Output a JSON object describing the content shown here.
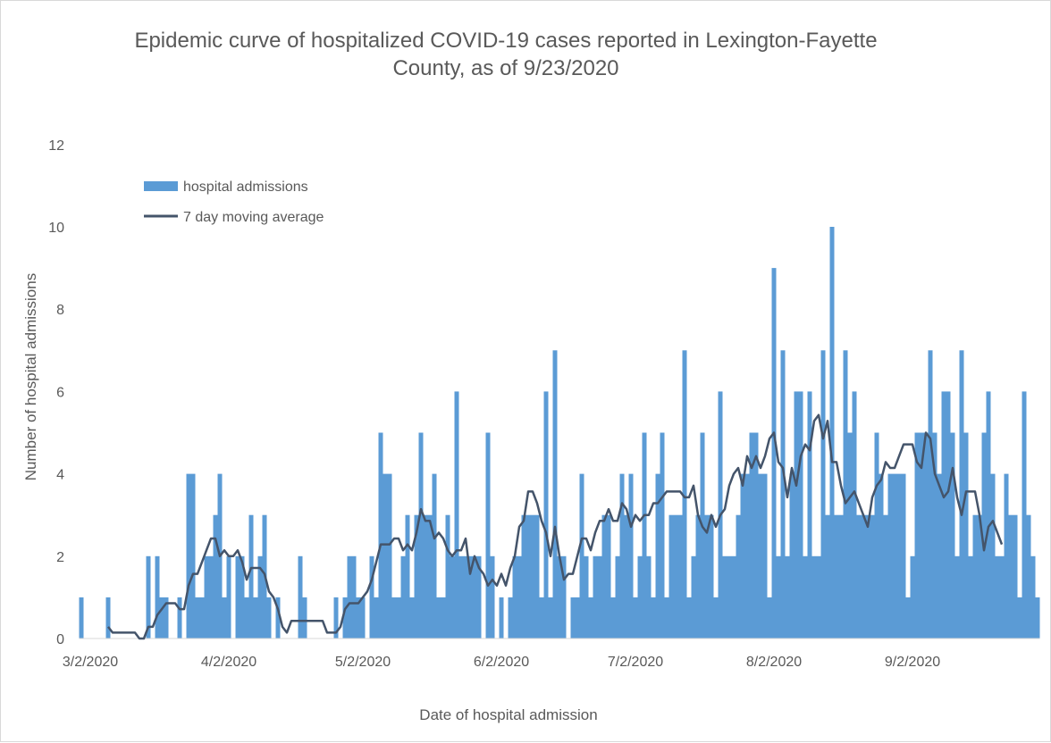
{
  "chart_data": {
    "type": "bar",
    "title_lines": [
      "Epidemic curve of hospitalized COVID-19 cases reported in Lexington-Fayette",
      "County, as of 9/23/2020"
    ],
    "xlabel": "Date of hospital admission",
    "ylabel": "Number of hospital admissions",
    "ylim": [
      0,
      12
    ],
    "y_ticks": [
      "0",
      "2",
      "4",
      "6",
      "8",
      "10",
      "12"
    ],
    "x_ticks": [
      "3/2/2020",
      "4/2/2020",
      "5/2/2020",
      "6/2/2020",
      "7/2/2020",
      "8/2/2020",
      "9/2/2020"
    ],
    "x_tick_day_index": [
      2,
      33,
      63,
      94,
      124,
      155,
      186
    ],
    "start_date": "2/29/2020",
    "legend": {
      "placement": "top-left",
      "items": [
        "hospital admissions",
        "7 day moving average"
      ]
    },
    "grid": false,
    "colors": {
      "bars": "#5b9bd5",
      "line": "#44546a"
    },
    "series": [
      {
        "name": "hospital admissions",
        "values": [
          1,
          0,
          0,
          0,
          0,
          0,
          1,
          0,
          0,
          0,
          0,
          0,
          0,
          0,
          0,
          2,
          0,
          2,
          1,
          1,
          0,
          0,
          1,
          0,
          4,
          4,
          1,
          1,
          2,
          2,
          3,
          4,
          1,
          2,
          0,
          2,
          2,
          1,
          3,
          1,
          2,
          3,
          1,
          0,
          1,
          0,
          0,
          0,
          0,
          2,
          1,
          0,
          0,
          0,
          0,
          0,
          0,
          1,
          0,
          1,
          2,
          2,
          1,
          1,
          0,
          2,
          1,
          5,
          4,
          4,
          1,
          1,
          2,
          3,
          1,
          3,
          5,
          3,
          3,
          4,
          1,
          1,
          3,
          2,
          6,
          2,
          2,
          2,
          2,
          2,
          0,
          5,
          2,
          0,
          1,
          0,
          1,
          2,
          2,
          3,
          3,
          3,
          3,
          1,
          6,
          1,
          7,
          2,
          2,
          0,
          1,
          1,
          4,
          2,
          1,
          2,
          2,
          3,
          3,
          1,
          2,
          4,
          3,
          4,
          1,
          2,
          5,
          2,
          1,
          4,
          5,
          1,
          3,
          3,
          3,
          7,
          1,
          2,
          3,
          5,
          3,
          3,
          1,
          6,
          2,
          2,
          2,
          3,
          4,
          4,
          5,
          5,
          4,
          4,
          1,
          9,
          2,
          7,
          2,
          4,
          6,
          6,
          2,
          6,
          2,
          2,
          7,
          3,
          10,
          3,
          3,
          7,
          5,
          6,
          3,
          3,
          3,
          3,
          5,
          4,
          3,
          4,
          4,
          4,
          4,
          1,
          2,
          5,
          5,
          5,
          7,
          5,
          4,
          6,
          6,
          5,
          2,
          7,
          5,
          2,
          3,
          3,
          5,
          6,
          4,
          2,
          2,
          4,
          3,
          3,
          1,
          6,
          3,
          2,
          1
        ]
      },
      {
        "name": "7 day moving average",
        "values": [
          0,
          0,
          0,
          0,
          0,
          0,
          0.286,
          0.143,
          0.143,
          0.143,
          0.143,
          0.143,
          0.143,
          0,
          0,
          0.286,
          0.286,
          0.571,
          0.714,
          0.857,
          0.857,
          0.857,
          0.714,
          0.714,
          1.286,
          1.571,
          1.571,
          1.857,
          2.143,
          2.429,
          2.429,
          2,
          2.143,
          2,
          2,
          2.143,
          1.857,
          1.429,
          1.714,
          1.714,
          1.714,
          1.571,
          1.143,
          1,
          0.714,
          0.286,
          0.143,
          0.429,
          0.429,
          0.429,
          0.429,
          0.429,
          0.429,
          0.429,
          0.429,
          0.143,
          0.143,
          0.143,
          0.286,
          0.714,
          0.857,
          0.857,
          0.857,
          1,
          1.143,
          1.429,
          1.857,
          2.286,
          2.286,
          2.286,
          2.429,
          2.429,
          2.143,
          2.286,
          2.143,
          2.571,
          3.143,
          2.857,
          2.857,
          2.429,
          2.571,
          2.429,
          2.143,
          2,
          2.143,
          2.143,
          2.429,
          1.571,
          2,
          1.714,
          1.571,
          1.286,
          1.429,
          1.286,
          1.571,
          1.286,
          1.714,
          2,
          2.714,
          2.857,
          3.571,
          3.571,
          3.286,
          2.857,
          2.571,
          2,
          2.714,
          2,
          1.429,
          1.571,
          1.571,
          2,
          2.429,
          2.429,
          2.143,
          2.571,
          2.857,
          2.857,
          3.143,
          2.857,
          2.857,
          3.286,
          3.143,
          2.714,
          3,
          2.857,
          3,
          3,
          3.286,
          3.286,
          3.429,
          3.571,
          3.571,
          3.571,
          3.571,
          3.429,
          3.429,
          3.714,
          3,
          2.714,
          2.571,
          3,
          2.714,
          3,
          3.143,
          3.714,
          4,
          4.143,
          3.714,
          4.429,
          4.143,
          4.429,
          4.143,
          4.429,
          4.857,
          5,
          4.286,
          4.143,
          3.429,
          4.143,
          3.714,
          4.429,
          4.714,
          4.571,
          5.286,
          5.429,
          4.857,
          5.286,
          4.286,
          4.286,
          3.714,
          3.286,
          3.429,
          3.571,
          3.286,
          3,
          2.714,
          3.429,
          3.714,
          3.857,
          4.286,
          4.143,
          4.143,
          4.429,
          4.714,
          4.714,
          4.714,
          4.286,
          4.143,
          5,
          4.857,
          4,
          3.714,
          3.429,
          3.571,
          4.143,
          3.429,
          3,
          3.571,
          3.571,
          3.571,
          3,
          2.143,
          2.714,
          2.857,
          2.571,
          2.286
        ]
      }
    ]
  }
}
